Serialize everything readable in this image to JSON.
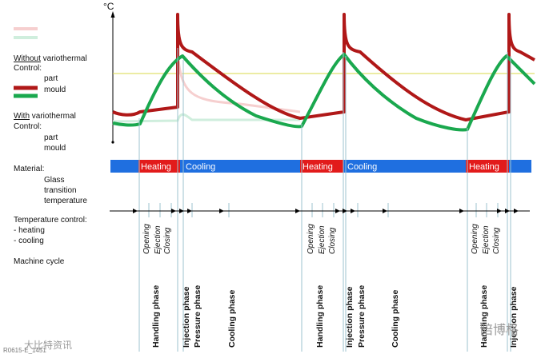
{
  "axis": {
    "unit": "°C"
  },
  "legend": {
    "without_word": "Without",
    "without_rest": " variothermal",
    "control": "Control:",
    "part": "part",
    "mould": "mould",
    "with_word": "With",
    "with_rest": " variothermal"
  },
  "rows": {
    "material_line1": "Material:",
    "material_line2": "Glass",
    "material_line3": "transition",
    "material_line4": "temperature",
    "temp_control": "Temperature control:",
    "heating": "- heating",
    "cooling": "- cooling",
    "machine_cycle": "Machine cycle"
  },
  "bar": {
    "heating": "Heating",
    "cooling": "Cooling"
  },
  "steps": {
    "opening": "Opening",
    "ejection": "Ejection",
    "closing": "Closing"
  },
  "phases": {
    "handling": "Handling phase",
    "injection": "Injection phase",
    "pressure": "Pressure phase",
    "cooling": "Cooling phase"
  },
  "footer": "R0615-E_1451",
  "watermark_left": "大比特资讯",
  "watermark_right": "陪博格",
  "colors": {
    "part_without": "#f6cfcf",
    "mould_without": "#cfeedd",
    "part_with": "#b01818",
    "mould_with": "#1aa84e",
    "bar_blue": "#1f6fe0",
    "bar_red": "#e21b1b",
    "tg_line": "#d8d84a",
    "guide_line": "#9ec3cf"
  }
}
